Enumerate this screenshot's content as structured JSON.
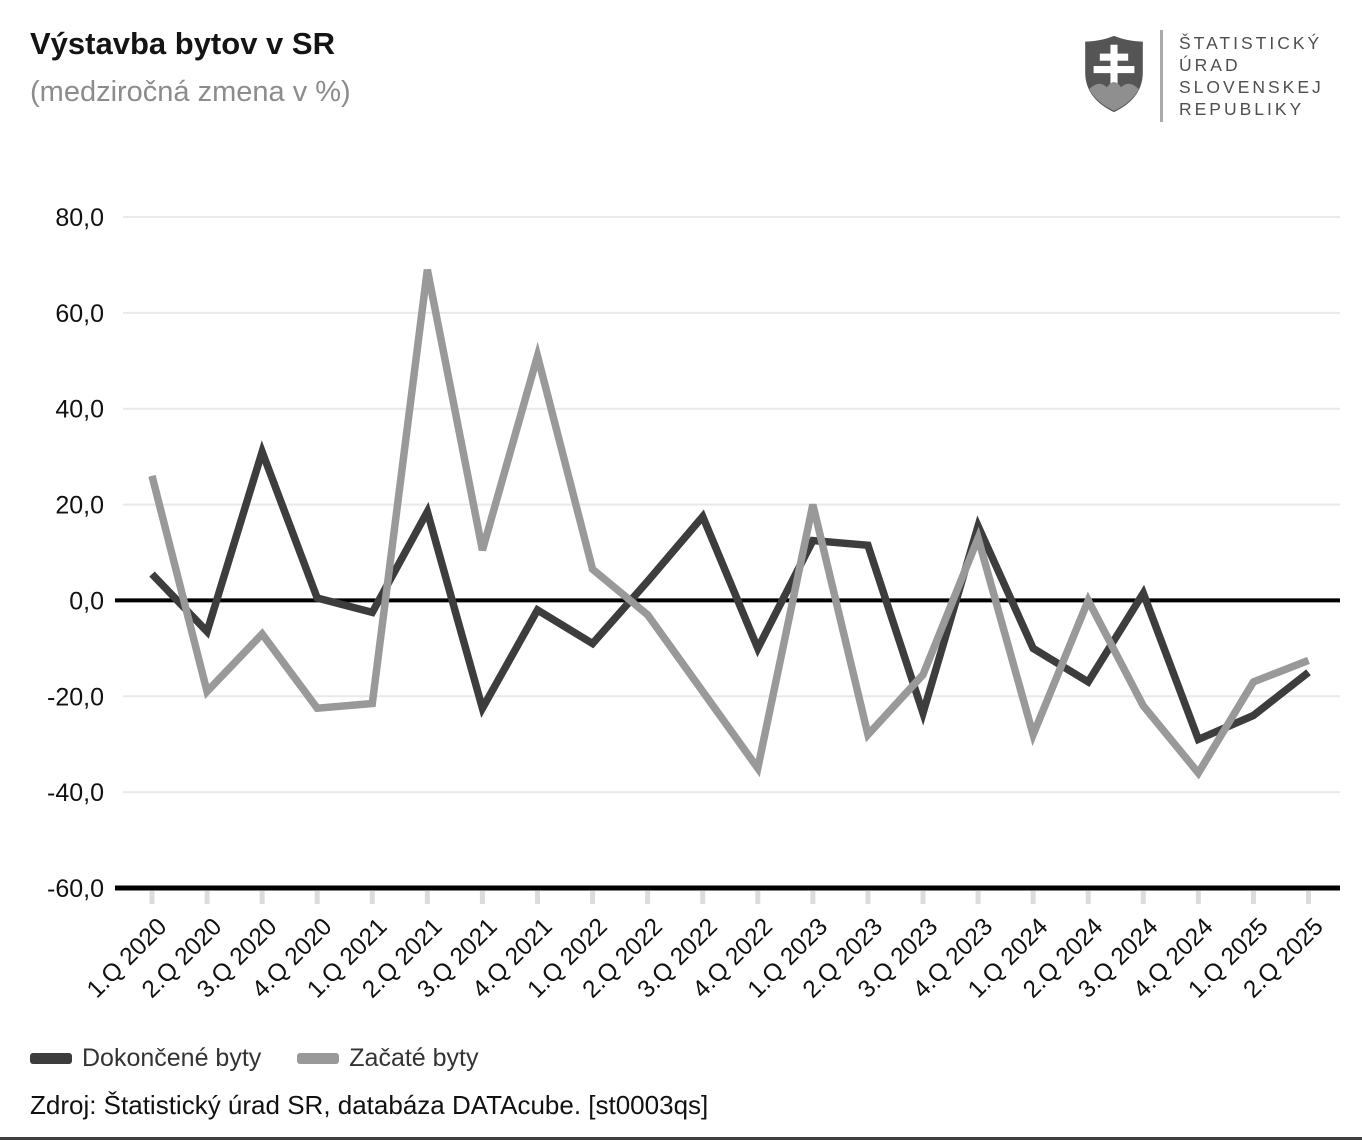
{
  "header": {
    "title": "Výstavba bytov v SR",
    "subtitle": "(medziročná zmena v %)",
    "logo": {
      "icon": "slovak-coat-of-arms",
      "lines": [
        "ŠTATISTICKÝ",
        "ÚRAD",
        "SLOVENSKEJ",
        "REPUBLIKY"
      ]
    }
  },
  "chart_data": {
    "type": "line",
    "title": "Výstavba bytov v SR",
    "subtitle": "(medziročná zmena v %)",
    "categories": [
      "1.Q 2020",
      "2.Q 2020",
      "3.Q 2020",
      "4.Q 2020",
      "1.Q 2021",
      "2.Q 2021",
      "3.Q 2021",
      "4.Q 2021",
      "1.Q 2022",
      "2.Q 2022",
      "3.Q 2022",
      "4.Q 2022",
      "1.Q 2023",
      "2.Q 2023",
      "3.Q 2023",
      "4.Q 2023",
      "1.Q 2024",
      "2.Q 2024",
      "3.Q 2024",
      "4.Q 2024",
      "1.Q 2025",
      "2.Q 2025"
    ],
    "series": [
      {
        "name": "Dokončené byty",
        "color": "#3d3d3d",
        "values": [
          5.5,
          -6.5,
          31,
          0.5,
          -2.5,
          18.5,
          -22.5,
          -2,
          -9,
          4,
          17.5,
          -10,
          12.5,
          11.5,
          -23.5,
          15.5,
          -10,
          -17,
          1.5,
          -29,
          -24,
          -15
        ]
      },
      {
        "name": "Začaté byty",
        "color": "#999999",
        "values": [
          26,
          -19,
          -7,
          -22.5,
          -21.5,
          69,
          10.5,
          51,
          6.5,
          -3,
          -19,
          -35,
          20,
          -28,
          -15.5,
          13,
          -28,
          0,
          -22,
          -36,
          -17,
          -12.5
        ]
      }
    ],
    "ylim": [
      -60,
      80
    ],
    "ytick_values": [
      80,
      60,
      40,
      20,
      0,
      -20,
      -40,
      -60
    ],
    "ytick_labels": [
      "80,0",
      "60,0",
      "40,0",
      "20,0",
      "0,0",
      "-20,0",
      "-40,0",
      "-60,0"
    ],
    "grid": true,
    "zero_line_color": "#000000",
    "grid_color": "#e9e9e9",
    "legend_position": "bottom-left"
  },
  "source": {
    "text": "Zdroj: Štatistický úrad SR, databáza DATAcube. [st0003qs]"
  }
}
